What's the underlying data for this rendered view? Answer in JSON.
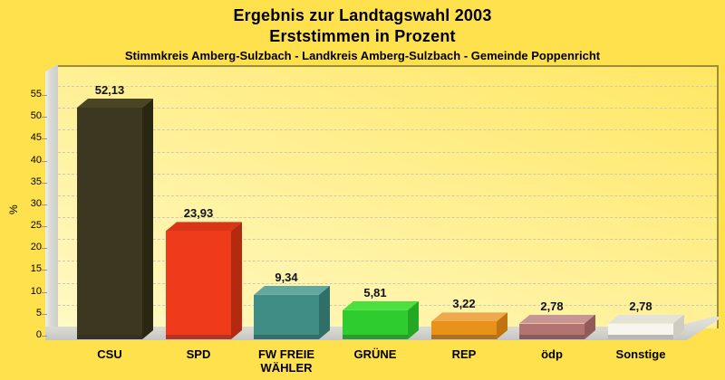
{
  "title": {
    "line1": "Ergebnis zur Landtagswahl 2003",
    "line2": "Erststimmen in Prozent",
    "subtitle": "Stimmkreis Amberg-Sulzbach - Landkreis Amberg-Sulzbach - Gemeinde Poppenricht"
  },
  "chart_data": {
    "type": "bar",
    "title": "Ergebnis zur Landtagswahl 2003 — Erststimmen in Prozent",
    "subtitle": "Stimmkreis Amberg-Sulzbach - Landkreis Amberg-Sulzbach - Gemeinde Poppenricht",
    "categories": [
      "CSU",
      "SPD",
      "FW FREIE WÄHLER",
      "GRÜNE",
      "REP",
      "ödp",
      "Sonstige"
    ],
    "category_lines": [
      [
        "CSU"
      ],
      [
        "SPD"
      ],
      [
        "FW FREIE",
        "WÄHLER"
      ],
      [
        "GRÜNE"
      ],
      [
        "REP"
      ],
      [
        "ödp"
      ],
      [
        "Sonstige"
      ]
    ],
    "values": [
      52.13,
      23.93,
      9.34,
      5.81,
      3.22,
      2.78,
      2.78
    ],
    "value_labels": [
      "52,13",
      "23,93",
      "9,34",
      "5,81",
      "3,22",
      "2,78",
      "2,78"
    ],
    "xlabel": "",
    "ylabel": "%",
    "ylim": [
      0,
      60
    ],
    "y_ticks": [
      0,
      5,
      10,
      15,
      20,
      25,
      30,
      35,
      40,
      45,
      50,
      55
    ],
    "grid": "dashed-horizontal",
    "legend": "none",
    "style": "3d-bars",
    "bar_colors": [
      {
        "name": "CSU",
        "front": "#3b3720",
        "top": "#4a4524",
        "side": "#292612"
      },
      {
        "name": "SPD",
        "front": "#f03a1c",
        "top": "#d93517",
        "side": "#b22b10"
      },
      {
        "name": "FW",
        "front": "#3f8d85",
        "top": "#63a89f",
        "side": "#2f6f68"
      },
      {
        "name": "GRÜNE",
        "front": "#2ecc2e",
        "top": "#4ce03e",
        "side": "#23a823"
      },
      {
        "name": "REP",
        "front": "#e8921a",
        "top": "#f0a84e",
        "side": "#bf7410"
      },
      {
        "name": "ödp",
        "front": "#b37373",
        "top": "#c79595",
        "side": "#935a5a"
      },
      {
        "name": "Sonstige",
        "front": "#f6f6ee",
        "top": "#e3e3d9",
        "side": "#cdcdc3"
      }
    ],
    "colors": {
      "page_background": "#ffe14e",
      "plot_background_top": "#ffe763",
      "plot_background_bottom": "#fff9c4",
      "plot_border": "#9b8e3b",
      "wall_floor_gray": "#d8d8d3",
      "gridline": "#cfc9ba",
      "text": "#000000"
    }
  }
}
